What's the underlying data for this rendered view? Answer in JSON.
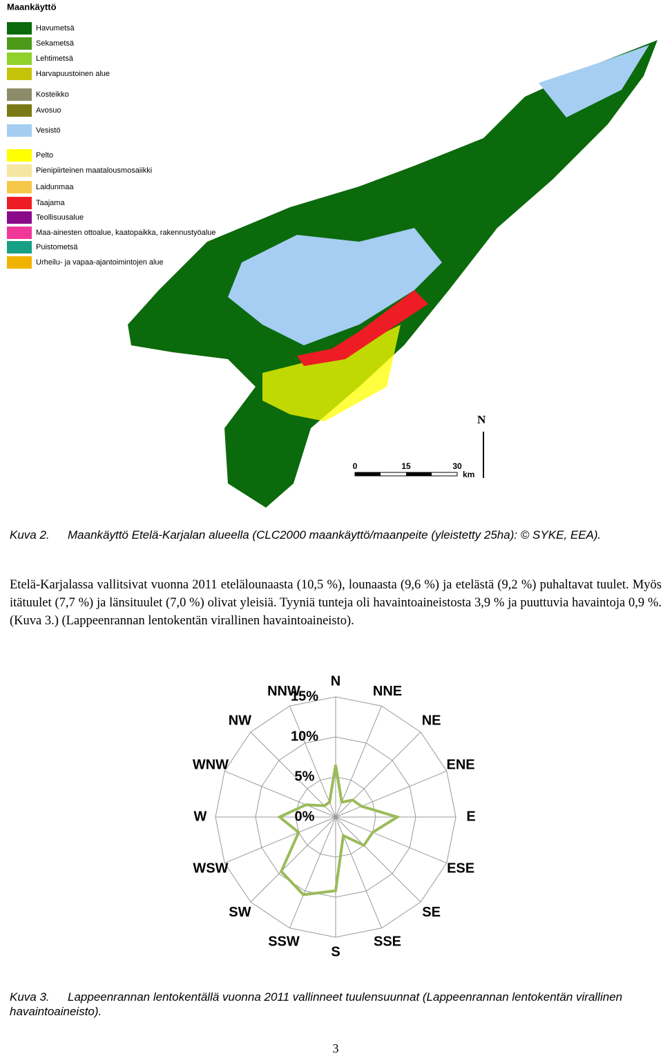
{
  "legend": {
    "title": "Maankäyttö",
    "items": [
      {
        "label": "Havumetsä",
        "color": "#0b6a0b"
      },
      {
        "label": "Sekametsä",
        "color": "#4d9a1a"
      },
      {
        "label": "Lehtimetsä",
        "color": "#8fd22c"
      },
      {
        "label": "Harvapuustoinen alue",
        "color": "#c6c20a"
      },
      {
        "label": "Kosteikko",
        "color": "#8c8c6a"
      },
      {
        "label": "Avosuo",
        "color": "#7a7a14"
      },
      {
        "label": "Vesistö",
        "color": "#a6cdf2"
      },
      {
        "label": "Pelto",
        "color": "#ffff00"
      },
      {
        "label": "Pienipiirteinen maatalousmosaiikki",
        "color": "#f6e6a0"
      },
      {
        "label": "Laidunmaa",
        "color": "#f6c84a"
      },
      {
        "label": "Taajama",
        "color": "#ee1c24"
      },
      {
        "label": "Teollisuusalue",
        "color": "#8b0a8b"
      },
      {
        "label": "Maa-ainesten ottoalue, kaatopaikka, rakennustyöalue",
        "color": "#f0389a"
      },
      {
        "label": "Puistometsä",
        "color": "#16a085"
      },
      {
        "label": "Urheilu- ja vapaa-ajantoimintojen alue",
        "color": "#f0b400"
      }
    ]
  },
  "map": {
    "north": "N",
    "scale_ticks": [
      0,
      15,
      30
    ],
    "scale_unit": "km"
  },
  "caption_2": {
    "label": "Kuva 2.",
    "text": "Maankäyttö Etelä-Karjalan alueella (CLC2000 maankäyttö/maanpeite (yleistetty 25ha): © SYKE, EEA)."
  },
  "paragraph": "Etelä-Karjalassa vallitsivat vuonna 2011 etelälounaasta (10,5 %), lounaasta (9,6 %) ja etelästä (9,2 %) puhaltavat tuulet. Myös itätuulet (7,7 %) ja länsituulet (7,0 %) olivat yleisiä. Tyyniä tunteja oli havaintoaineistosta 3,9 % ja puuttuvia havaintoja 0,9 %. (Kuva 3.) (Lappeenrannan lentokentän virallinen havaintoaineisto).",
  "chart_data": {
    "type": "radar",
    "categories": [
      "N",
      "NNE",
      "NE",
      "ENE",
      "E",
      "ESE",
      "SE",
      "SSE",
      "S",
      "SSW",
      "SW",
      "WSW",
      "W",
      "WNW",
      "NW",
      "NNW"
    ],
    "values": [
      6.5,
      2,
      3,
      3.5,
      7.7,
      5,
      5,
      2.5,
      9.2,
      10.5,
      9.6,
      5,
      7,
      4,
      2,
      2
    ],
    "color": "#9bbb59",
    "rlim": [
      0,
      15
    ],
    "rticks": [
      {
        "value": 0,
        "label": "0%"
      },
      {
        "value": 5,
        "label": "5%"
      },
      {
        "value": 10,
        "label": "10%"
      },
      {
        "value": 15,
        "label": "15%"
      }
    ],
    "grid": true
  },
  "caption_3": {
    "label": "Kuva 3.",
    "text": "Lappeenrannan lentokentällä vuonna 2011 vallinneet tuulensuunnat (Lappeenrannan lentokentän virallinen havaintoaineisto)."
  },
  "page_number": "3"
}
